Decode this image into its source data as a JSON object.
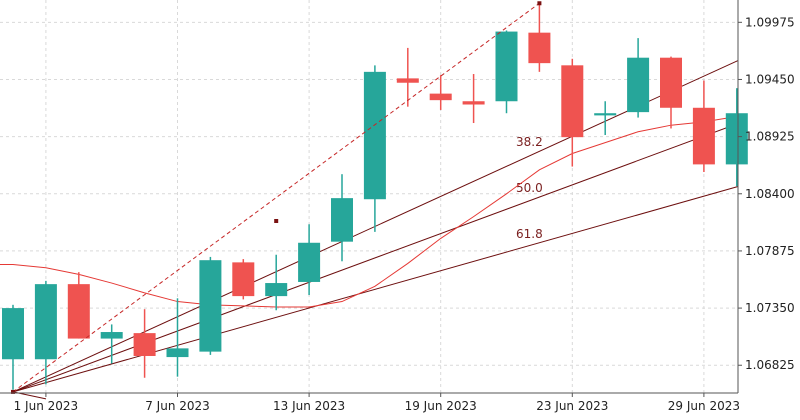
{
  "chart_data": {
    "type": "candlestick",
    "colors": {
      "up": "#26a69a",
      "down": "#ef5350",
      "ma": "#e53935",
      "fan": "#6d0f0f",
      "trend": "#c62828",
      "grid": "#d9d9d9",
      "axis": "#555555"
    },
    "x_tick_labels": [
      "1 Jun 2023",
      "7 Jun 2023",
      "13 Jun 2023",
      "19 Jun 2023",
      "23 Jun 2023",
      "29 Jun 2023"
    ],
    "y_tick_labels": [
      "1.09975",
      "1.09450",
      "1.08925",
      "1.08400",
      "1.07875",
      "1.07350",
      "1.06825"
    ],
    "y_ticks": [
      1.09975,
      1.0945,
      1.08925,
      1.084,
      1.07875,
      1.0735,
      1.06825
    ],
    "ylim": [
      1.0657,
      1.1018
    ],
    "grid": true,
    "candles": [
      {
        "open": 1.0688,
        "high": 1.0738,
        "low": 1.066,
        "close": 1.0735
      },
      {
        "open": 1.0688,
        "high": 1.076,
        "low": 1.0665,
        "close": 1.0757
      },
      {
        "open": 1.0757,
        "high": 1.0768,
        "low": 1.0707,
        "close": 1.0707
      },
      {
        "open": 1.0707,
        "high": 1.072,
        "low": 1.0684,
        "close": 1.0713
      },
      {
        "open": 1.0712,
        "high": 1.0734,
        "low": 1.0671,
        "close": 1.0691
      },
      {
        "open": 1.069,
        "high": 1.0744,
        "low": 1.0672,
        "close": 1.0698
      },
      {
        "open": 1.0695,
        "high": 1.0782,
        "low": 1.0692,
        "close": 1.0779
      },
      {
        "open": 1.0777,
        "high": 1.078,
        "low": 1.0743,
        "close": 1.0746
      },
      {
        "open": 1.0746,
        "high": 1.0784,
        "low": 1.0733,
        "close": 1.0758
      },
      {
        "open": 1.0759,
        "high": 1.0812,
        "low": 1.0747,
        "close": 1.0795
      },
      {
        "open": 1.0796,
        "high": 1.0858,
        "low": 1.0778,
        "close": 1.0836
      },
      {
        "open": 1.0835,
        "high": 1.0958,
        "low": 1.0805,
        "close": 1.0952
      },
      {
        "open": 1.0946,
        "high": 1.0974,
        "low": 1.092,
        "close": 1.0942
      },
      {
        "open": 1.0932,
        "high": 1.0949,
        "low": 1.0917,
        "close": 1.0926
      },
      {
        "open": 1.0925,
        "high": 1.095,
        "low": 1.0905,
        "close": 1.0922
      },
      {
        "open": 1.0925,
        "high": 1.099,
        "low": 1.0914,
        "close": 1.0989
      },
      {
        "open": 1.0988,
        "high": 1.1015,
        "low": 1.0952,
        "close": 1.096
      },
      {
        "open": 1.0958,
        "high": 1.0964,
        "low": 1.0865,
        "close": 1.0892
      },
      {
        "open": 1.0912,
        "high": 1.0925,
        "low": 1.0894,
        "close": 1.0914
      },
      {
        "open": 1.0915,
        "high": 1.0983,
        "low": 1.091,
        "close": 1.0965
      },
      {
        "open": 1.0965,
        "high": 1.0966,
        "low": 1.09,
        "close": 1.0919
      },
      {
        "open": 1.0919,
        "high": 1.0944,
        "low": 1.086,
        "close": 1.0867
      },
      {
        "open": 1.0867,
        "high": 1.0937,
        "low": 1.0847,
        "close": 1.0914
      }
    ],
    "moving_average": [
      1.0775,
      1.0772,
      1.0766,
      1.0758,
      1.0749,
      1.0741,
      1.0738,
      1.0737,
      1.0736,
      1.0736,
      1.0741,
      1.0755,
      1.0776,
      1.0799,
      1.0819,
      1.084,
      1.0862,
      1.0877,
      1.0887,
      1.0897,
      1.0903,
      1.0906,
      1.0911
    ],
    "trend_line": {
      "from_candle": 0,
      "from_price": 1.0658,
      "to_candle": 16,
      "to_price": 1.1015,
      "mid_candle": 8,
      "mid_price": 1.0815
    },
    "fan_lines": [
      {
        "label": "38.2",
        "to_candle": 16,
        "to_price": 1.0879
      },
      {
        "label": "50.0",
        "to_candle": 16,
        "to_price": 1.0837
      },
      {
        "label": "61.8",
        "to_candle": 16,
        "to_price": 1.0795
      }
    ]
  }
}
